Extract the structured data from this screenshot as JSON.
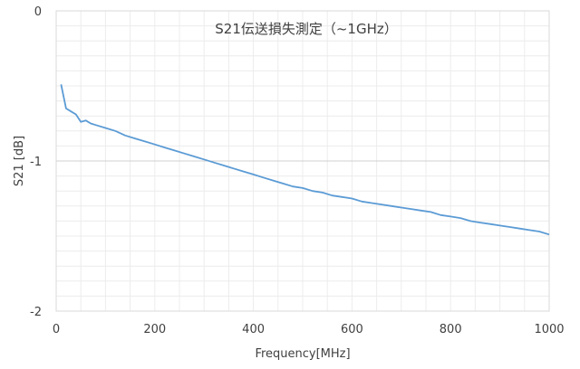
{
  "chart_data": {
    "type": "line",
    "title": "S21伝送損失測定（~1GHz）",
    "xlabel": "Frequency[MHz]",
    "ylabel": "S21 [dB]",
    "xlim": [
      0,
      1000
    ],
    "ylim": [
      -2,
      0
    ],
    "x_ticks": [
      0,
      200,
      400,
      600,
      800,
      1000
    ],
    "y_ticks": [
      0,
      -1,
      -2
    ],
    "x_tick_labels": [
      "0",
      "200",
      "400",
      "600",
      "800",
      "1000"
    ],
    "y_tick_labels": [
      "0",
      "-1",
      "-2"
    ],
    "grid": true,
    "line_color": "#5b9bd5",
    "series": [
      {
        "x": [
          10,
          20,
          30,
          40,
          50,
          60,
          70,
          80,
          100,
          120,
          140,
          160,
          180,
          200,
          220,
          240,
          260,
          280,
          300,
          320,
          340,
          360,
          380,
          400,
          420,
          440,
          460,
          480,
          500,
          520,
          540,
          560,
          580,
          600,
          620,
          640,
          660,
          680,
          700,
          720,
          740,
          760,
          780,
          800,
          820,
          840,
          860,
          880,
          900,
          920,
          940,
          960,
          980,
          1000
        ],
        "y": [
          -0.49,
          -0.65,
          -0.67,
          -0.69,
          -0.74,
          -0.73,
          -0.75,
          -0.76,
          -0.78,
          -0.8,
          -0.83,
          -0.85,
          -0.87,
          -0.89,
          -0.91,
          -0.93,
          -0.95,
          -0.97,
          -0.99,
          -1.01,
          -1.03,
          -1.05,
          -1.07,
          -1.09,
          -1.11,
          -1.13,
          -1.15,
          -1.17,
          -1.18,
          -1.2,
          -1.21,
          -1.23,
          -1.24,
          -1.25,
          -1.27,
          -1.28,
          -1.29,
          -1.3,
          -1.31,
          -1.32,
          -1.33,
          -1.34,
          -1.36,
          -1.37,
          -1.38,
          -1.4,
          -1.41,
          -1.42,
          -1.43,
          -1.44,
          -1.45,
          -1.46,
          -1.47,
          -1.49
        ]
      }
    ]
  }
}
